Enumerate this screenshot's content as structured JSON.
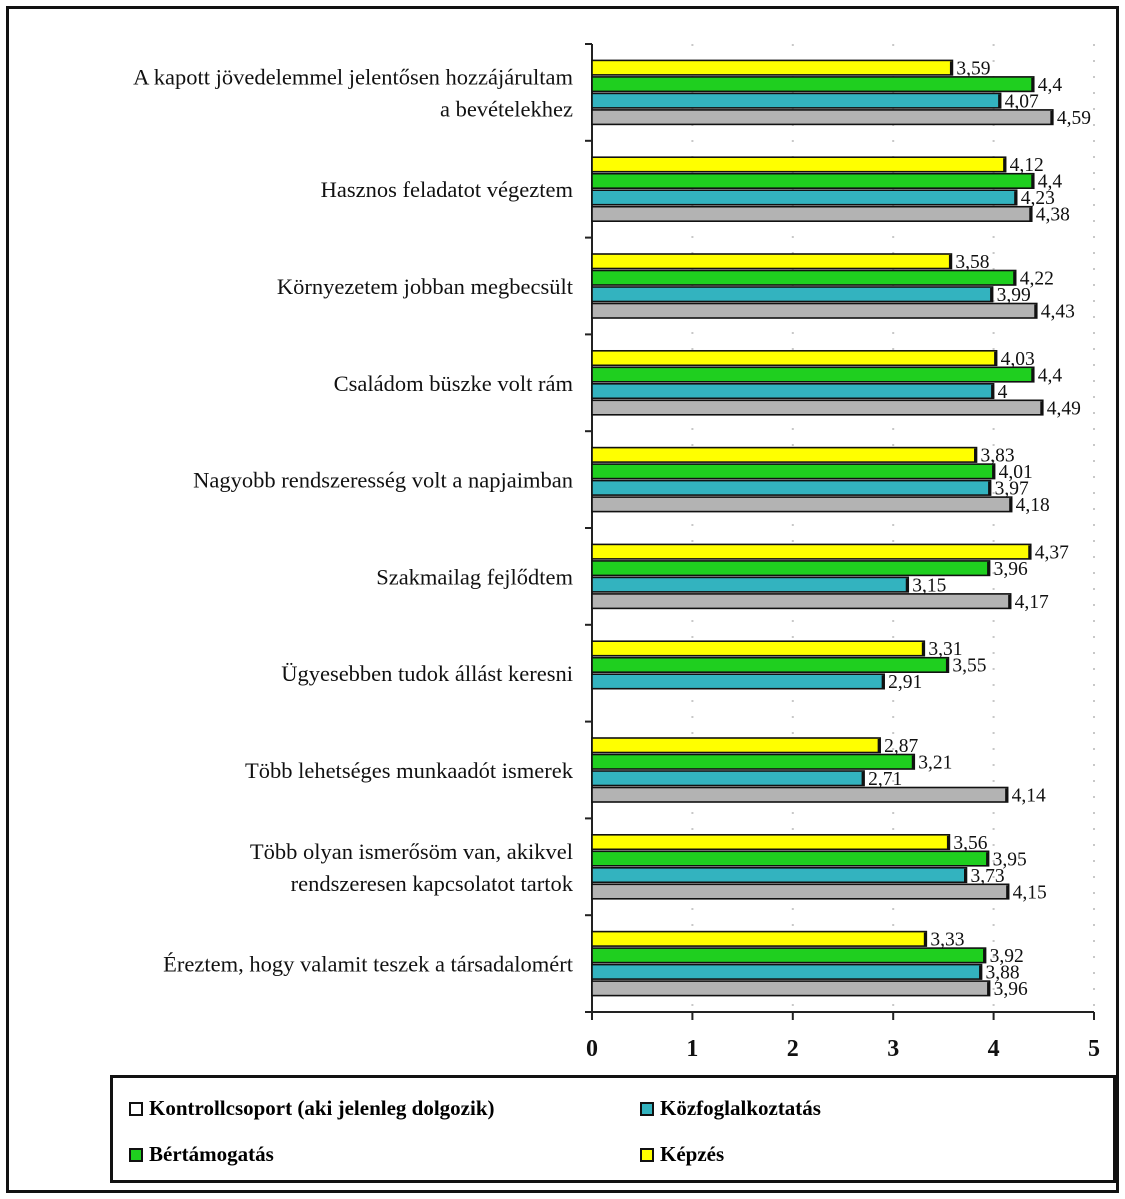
{
  "chart_data": {
    "type": "bar",
    "orientation": "horizontal",
    "xlim": [
      0,
      5
    ],
    "xticks": [
      "0",
      "1",
      "2",
      "3",
      "4",
      "5"
    ],
    "grid": true,
    "legend_position": "bottom",
    "categories": [
      [
        "A kapott jövedelemmel jelentősen hozzájárultam",
        "a bevételekhez"
      ],
      [
        "Hasznos feladatot végeztem"
      ],
      [
        "Környezetem jobban megbecsült"
      ],
      [
        "Családom büszke volt rám"
      ],
      [
        "Nagyobb rendszeresség volt a napjaimban"
      ],
      [
        "Szakmailag fejlődtem"
      ],
      [
        "Ügyesebben tudok állást keresni"
      ],
      [
        "Több lehetséges munkaadót ismerek"
      ],
      [
        "Több olyan ismerősöm van, akikvel",
        "rendszeresen kapcsolatot tartok"
      ],
      [
        "Éreztem, hogy valamit teszek a társadalomért"
      ]
    ],
    "series": [
      {
        "name": "Képzés",
        "color": "#ffff00",
        "values": [
          3.59,
          4.12,
          3.58,
          4.03,
          3.83,
          4.37,
          3.31,
          2.87,
          3.56,
          3.33
        ],
        "labels": [
          "3,59",
          "4,12",
          "3,58",
          "4,03",
          "3,83",
          "4,37",
          "3,31",
          "2,87",
          "3,56",
          "3,33"
        ]
      },
      {
        "name": "Bértámogatás",
        "color": "#1fcf1f",
        "values": [
          4.4,
          4.4,
          4.22,
          4.4,
          4.01,
          3.96,
          3.55,
          3.21,
          3.95,
          3.92
        ],
        "labels": [
          "4,4",
          "4,4",
          "4,22",
          "4,4",
          "4,01",
          "3,96",
          "3,55",
          "3,21",
          "3,95",
          "3,92"
        ]
      },
      {
        "name": "Közfoglalkoztatás",
        "color": "#33b3bf",
        "values": [
          4.07,
          4.23,
          3.99,
          4,
          3.97,
          3.15,
          2.91,
          2.71,
          3.73,
          3.88
        ],
        "labels": [
          "4,07",
          "4,23",
          "3,99",
          "4",
          "3,97",
          "3,15",
          "2,91",
          "2,71",
          "3,73",
          "3,88"
        ]
      },
      {
        "name": "Kontrollcsoport (aki  jelenleg dolgozik)",
        "color": "#b3b3b3",
        "values": [
          4.59,
          4.38,
          4.43,
          4.49,
          4.18,
          4.17,
          null,
          4.14,
          4.15,
          3.96
        ],
        "labels": [
          "4,59",
          "4,38",
          "4,43",
          "4,49",
          "4,18",
          "4,17",
          null,
          "4,14",
          "4,15",
          "3,96"
        ]
      }
    ],
    "legend": [
      {
        "label": "Kontrollcsoport (aki  jelenleg dolgozik)",
        "color": "#ffffff"
      },
      {
        "label": "Közfoglalkoztatás",
        "color": "#33b3bf"
      },
      {
        "label": "Bértámogatás",
        "color": "#1fcf1f"
      },
      {
        "label": "Képzés",
        "color": "#ffff00"
      }
    ]
  }
}
